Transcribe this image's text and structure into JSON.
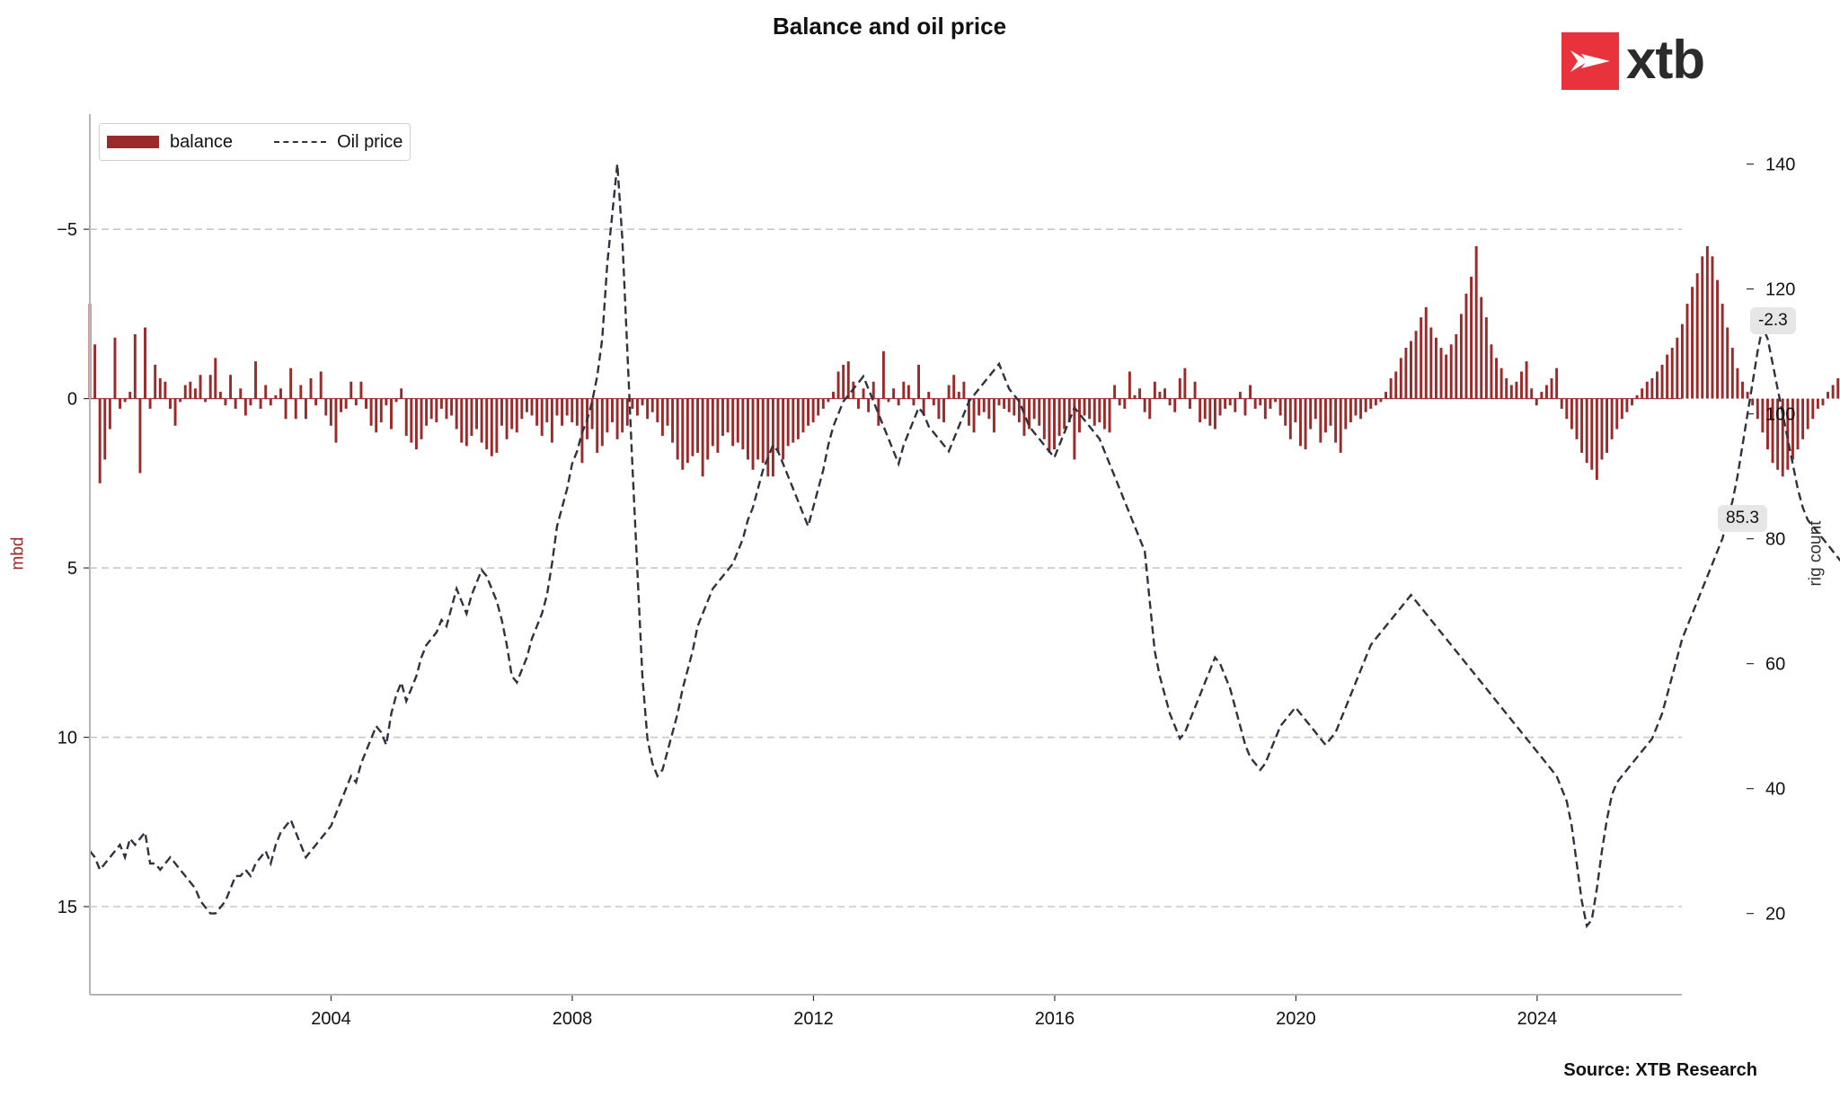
{
  "title": "Balance and oil price",
  "logo": {
    "text": "xtb",
    "color": "#e8323c"
  },
  "source": "Source: XTB Research",
  "colors": {
    "balance": "#9b2a2a",
    "oil": "#2f3340",
    "grid": "#c8c8c8",
    "axis": "#b5b5b5"
  },
  "legend": {
    "balance": "balance",
    "oil": "Oil price"
  },
  "tags": {
    "balance_last": "-2.3",
    "oil_last": "85.3"
  },
  "chart_data": {
    "type": "bar+line",
    "title": "Balance and oil price",
    "ylabel_left": "mbd",
    "ylabel_right": "rig count",
    "left_axis": {
      "inverted": true,
      "ylim": [
        17.6,
        -8.4
      ],
      "ticks": [
        -5,
        0,
        5,
        10,
        15
      ],
      "tick_labels": [
        "−5",
        "0",
        "5",
        "10",
        "15"
      ]
    },
    "right_axis": {
      "ylim": [
        7,
        148
      ],
      "ticks": [
        20,
        40,
        60,
        80,
        100,
        120,
        140
      ],
      "tick_labels": [
        "20",
        "40",
        "60",
        "80",
        "100",
        "120",
        "140"
      ]
    },
    "x_axis": {
      "range": [
        2000.0,
        2026.4
      ],
      "ticks": [
        2004,
        2008,
        2012,
        2016,
        2020,
        2024
      ],
      "tick_labels": [
        "2004",
        "2008",
        "2012",
        "2016",
        "2020",
        "2024"
      ]
    },
    "grid": "horizontal dashed at left-axis ticks",
    "legend_position": "top-left",
    "series": [
      {
        "name": "balance",
        "type": "bar",
        "axis": "left",
        "x_start": 2000.0,
        "x_step": 0.0833,
        "values": [
          -2.8,
          -1.6,
          2.5,
          1.8,
          0.9,
          -1.8,
          0.3,
          0.1,
          -0.2,
          -1.9,
          2.2,
          -2.1,
          0.3,
          -1.0,
          -0.6,
          -0.5,
          0.3,
          0.8,
          0.1,
          -0.4,
          -0.5,
          -0.3,
          -0.7,
          0.1,
          -0.7,
          -1.2,
          -0.2,
          0.2,
          -0.7,
          0.3,
          -0.3,
          0.5,
          0.2,
          -1.1,
          0.3,
          -0.4,
          0.2,
          -0.1,
          -0.3,
          0.6,
          -0.9,
          0.6,
          -0.4,
          0.6,
          -0.6,
          0.2,
          -0.8,
          0.5,
          0.8,
          1.3,
          0.4,
          0.3,
          -0.5,
          0.2,
          -0.5,
          0.3,
          0.8,
          1.0,
          0.7,
          0.2,
          0.9,
          0.1,
          -0.3,
          1.1,
          1.3,
          1.5,
          1.2,
          0.8,
          0.6,
          0.7,
          0.3,
          0.6,
          0.5,
          0.9,
          1.3,
          1.4,
          1.1,
          0.9,
          1.3,
          1.5,
          1.7,
          1.6,
          0.8,
          1.2,
          0.9,
          1.0,
          0.6,
          0.4,
          0.5,
          0.8,
          1.1,
          0.7,
          1.3,
          0.5,
          0.8,
          0.5,
          0.7,
          0.8,
          1.9,
          1.2,
          0.9,
          1.6,
          1.4,
          1.0,
          0.7,
          1.2,
          1.0,
          0.8,
          0.3,
          0.5,
          0.2,
          0.6,
          0.4,
          0.7,
          1.1,
          0.8,
          1.3,
          1.8,
          2.1,
          1.9,
          1.7,
          1.6,
          2.3,
          1.8,
          1.4,
          1.6,
          1.1,
          1.0,
          1.4,
          1.3,
          1.5,
          1.8,
          2.1,
          1.8,
          1.9,
          2.3,
          2.3,
          1.6,
          1.8,
          1.4,
          1.3,
          1.2,
          1.0,
          0.8,
          0.7,
          0.5,
          0.3,
          0.1,
          -0.2,
          -0.8,
          -1.0,
          -1.1,
          -0.5,
          0.3,
          -0.3,
          0.4,
          -0.5,
          0.8,
          -1.4,
          0.1,
          -0.3,
          0.2,
          -0.5,
          -0.4,
          0.2,
          -1.0,
          0.5,
          -0.2,
          0.2,
          0.6,
          0.7,
          -0.4,
          -0.7,
          -0.2,
          -0.5,
          0.8,
          1.0,
          0.5,
          0.4,
          0.6,
          1.0,
          0.2,
          0.3,
          0.4,
          0.5,
          0.7,
          1.1,
          0.9,
          0.6,
          0.8,
          1.2,
          1.6,
          1.5,
          1.1,
          0.9,
          0.7,
          1.8,
          1.0,
          0.5,
          0.6,
          0.8,
          0.7,
          0.9,
          1.0,
          -0.4,
          0.2,
          0.3,
          -0.8,
          -0.1,
          -0.3,
          0.4,
          0.6,
          -0.5,
          -0.2,
          -0.3,
          0.2,
          0.4,
          -0.6,
          -0.9,
          0.3,
          -0.5,
          0.7,
          0.6,
          0.8,
          0.9,
          0.5,
          0.3,
          0.2,
          0.4,
          -0.2,
          0.5,
          -0.4,
          0.3,
          0.2,
          0.6,
          0.3,
          0.1,
          0.5,
          0.8,
          1.2,
          0.7,
          1.4,
          1.5,
          0.9,
          0.6,
          1.3,
          1.0,
          0.8,
          1.3,
          1.6,
          0.9,
          0.7,
          0.5,
          0.6,
          0.4,
          0.3,
          0.2,
          0.1,
          -0.2,
          -0.6,
          -0.8,
          -1.2,
          -1.5,
          -1.7,
          -2.0,
          -2.4,
          -2.7,
          -2.1,
          -1.8,
          -1.5,
          -1.3,
          -1.6,
          -1.9,
          -2.5,
          -3.1,
          -3.6,
          -4.5,
          -3.0,
          -2.4,
          -1.6,
          -1.2,
          -0.9,
          -0.6,
          -0.4,
          -0.5,
          -0.8,
          -1.1,
          -0.3,
          0.2,
          -0.2,
          -0.4,
          -0.6,
          -0.9,
          0.3,
          0.6,
          0.9,
          1.2,
          1.6,
          1.9,
          2.1,
          2.4,
          1.8,
          1.6,
          1.2,
          0.9,
          0.6,
          0.4,
          0.2,
          -0.1,
          -0.3,
          -0.5,
          -0.6,
          -0.8,
          -1.0,
          -1.3,
          -1.5,
          -1.8,
          -2.2,
          -2.8,
          -3.3,
          -3.7,
          -4.2,
          -4.5,
          -4.2,
          -3.5,
          -2.8,
          -2.1,
          -1.5,
          -0.9,
          -0.5,
          -0.2,
          0.2,
          0.6,
          1.0,
          1.5,
          1.9,
          2.1,
          2.3,
          2.1,
          1.8,
          1.5,
          1.2,
          0.9,
          0.6,
          0.3,
          0.2,
          -0.2,
          -0.4,
          -0.6,
          -0.8,
          -1.0,
          -1.2,
          -1.4,
          -1.5,
          -1.6,
          -1.8,
          -2.1,
          -2.4,
          -2.7,
          -3.1,
          -3.4,
          -3.8,
          -4.2,
          -4.4,
          -4.6,
          -4.8,
          -5.0,
          -5.2,
          -5.4,
          -5.6,
          -5.0,
          -4.2,
          -3.4,
          -2.7,
          -2.3
        ]
      },
      {
        "name": "Oil price",
        "type": "line",
        "axis": "right",
        "style": "dashed",
        "x_start": 2000.0,
        "x_step": 0.0833,
        "values": [
          30,
          29,
          27,
          28,
          29,
          30,
          31,
          29,
          32,
          31,
          32,
          33,
          28,
          28,
          27,
          28,
          29,
          28,
          27,
          26,
          25,
          24,
          22,
          21,
          20,
          20,
          21,
          22,
          24,
          26,
          26,
          27,
          26,
          28,
          29,
          30,
          28,
          31,
          33,
          34,
          35,
          33,
          31,
          29,
          30,
          31,
          32,
          33,
          34,
          36,
          38,
          40,
          42,
          41,
          44,
          46,
          48,
          50,
          49,
          47,
          52,
          55,
          57,
          54,
          56,
          58,
          61,
          63,
          64,
          65,
          67,
          66,
          69,
          72,
          70,
          68,
          71,
          73,
          75,
          74,
          72,
          70,
          67,
          63,
          58,
          57,
          59,
          61,
          64,
          66,
          68,
          71,
          76,
          82,
          85,
          88,
          92,
          94,
          97,
          99,
          102,
          106,
          112,
          124,
          132,
          140,
          128,
          110,
          92,
          75,
          58,
          48,
          44,
          42,
          43,
          46,
          49,
          52,
          56,
          59,
          62,
          66,
          68,
          70,
          72,
          73,
          74,
          75,
          76,
          78,
          80,
          83,
          85,
          88,
          91,
          93,
          95,
          94,
          92,
          90,
          88,
          86,
          84,
          82,
          85,
          88,
          91,
          95,
          98,
          100,
          102,
          103,
          104,
          105,
          106,
          104,
          102,
          100,
          98,
          96,
          94,
          92,
          95,
          97,
          99,
          101,
          100,
          98,
          97,
          96,
          95,
          94,
          96,
          98,
          100,
          102,
          103,
          104,
          105,
          106,
          107,
          108,
          106,
          104,
          103,
          102,
          100,
          98,
          97,
          96,
          95,
          94,
          93,
          95,
          97,
          99,
          101,
          100,
          99,
          98,
          97,
          96,
          94,
          92,
          90,
          88,
          86,
          84,
          82,
          80,
          78,
          70,
          62,
          58,
          55,
          52,
          50,
          48,
          49,
          51,
          53,
          55,
          57,
          59,
          61,
          60,
          58,
          56,
          53,
          50,
          47,
          45,
          44,
          43,
          44,
          46,
          48,
          50,
          51,
          52,
          53,
          52,
          51,
          50,
          49,
          48,
          47,
          48,
          49,
          51,
          53,
          55,
          57,
          59,
          61,
          63,
          64,
          65,
          66,
          67,
          68,
          69,
          70,
          71,
          70,
          69,
          68,
          67,
          66,
          65,
          64,
          63,
          62,
          61,
          60,
          59,
          58,
          57,
          56,
          55,
          54,
          53,
          52,
          51,
          50,
          49,
          48,
          47,
          46,
          45,
          44,
          43,
          42,
          40,
          38,
          34,
          28,
          22,
          18,
          19,
          24,
          30,
          35,
          39,
          41,
          42,
          43,
          44,
          45,
          46,
          47,
          48,
          50,
          52,
          55,
          58,
          61,
          64,
          66,
          68,
          70,
          72,
          74,
          76,
          78,
          80,
          83,
          86,
          90,
          95,
          100,
          105,
          110,
          114,
          112,
          108,
          104,
          100,
          96,
          92,
          88,
          85,
          83,
          82,
          81,
          80,
          79,
          78,
          77,
          76,
          75,
          74,
          73,
          72,
          73,
          74,
          75,
          76,
          77,
          78,
          79,
          80,
          81,
          82,
          81,
          80,
          79,
          78,
          77,
          76,
          75,
          74,
          73,
          72,
          71,
          70,
          69,
          68,
          67,
          66,
          65,
          64,
          63,
          62,
          61,
          60,
          59,
          58,
          57,
          56,
          55,
          56,
          58,
          61,
          64,
          67,
          72,
          80,
          90,
          100,
          98,
          90,
          82,
          75,
          70,
          69,
          73,
          79,
          85.3
        ]
      }
    ]
  }
}
